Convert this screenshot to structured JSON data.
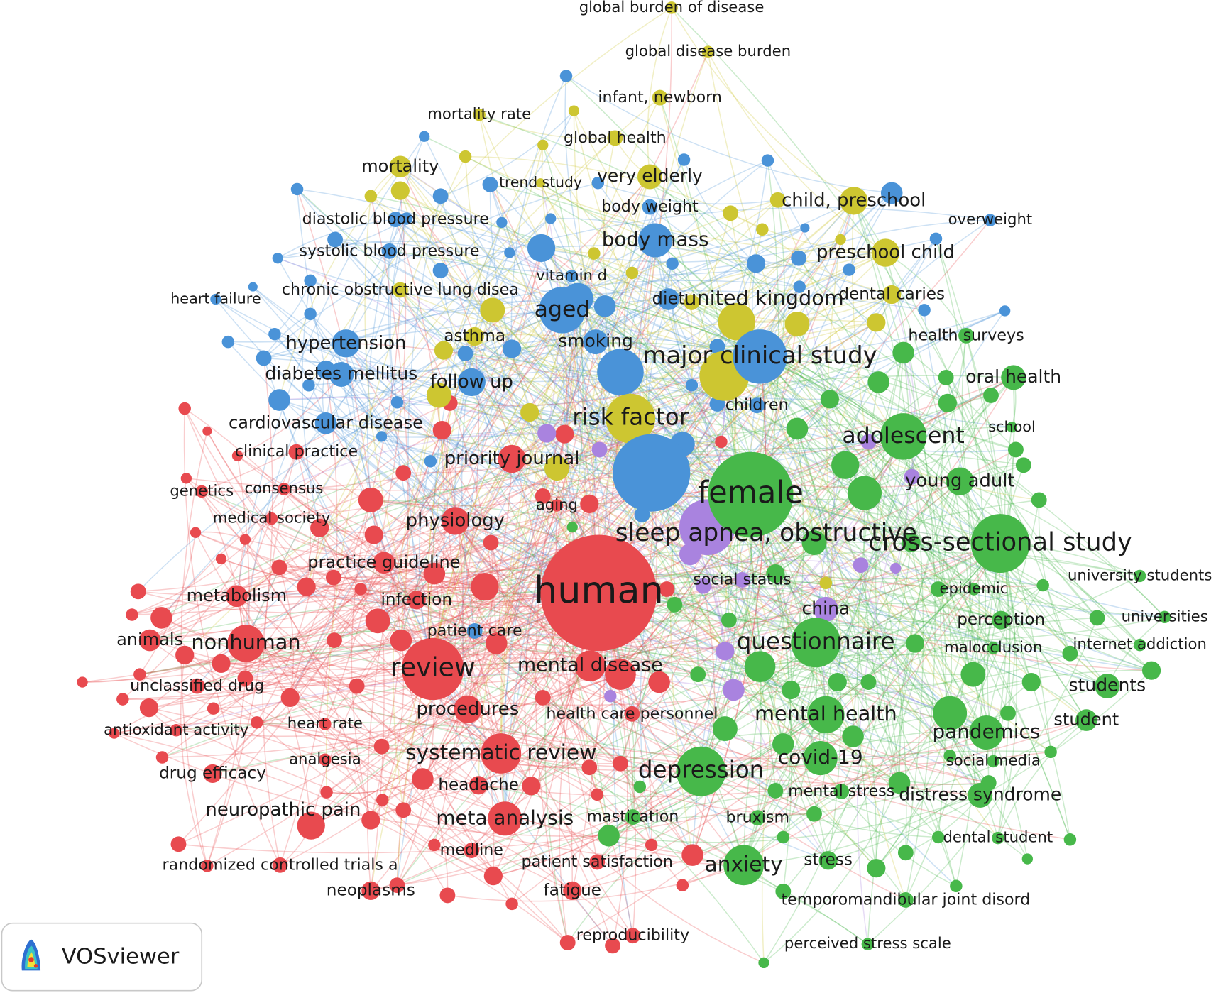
{
  "nodes": [
    {
      "label": "global burden of disease"
    },
    {
      "label": "global disease burden"
    },
    {
      "label": "infant, newborn"
    },
    {
      "label": "mortality rate"
    },
    {
      "label": "global health"
    },
    {
      "label": "mortality"
    },
    {
      "label": "trend study"
    },
    {
      "label": "very elderly"
    },
    {
      "label": "child, preschool"
    },
    {
      "label": "body weight"
    },
    {
      "label": "diastolic blood pressure"
    },
    {
      "label": "overweight"
    },
    {
      "label": "body mass"
    },
    {
      "label": "systolic blood pressure"
    },
    {
      "label": "preschool child"
    },
    {
      "label": "vitamin d"
    },
    {
      "label": "chronic obstructive lung disea"
    },
    {
      "label": "heart failure"
    },
    {
      "label": "aged"
    },
    {
      "label": "diet"
    },
    {
      "label": "united kingdom"
    },
    {
      "label": "dental caries"
    },
    {
      "label": "asthma"
    },
    {
      "label": "hypertension"
    },
    {
      "label": "smoking"
    },
    {
      "label": "major clinical study"
    },
    {
      "label": "health surveys"
    },
    {
      "label": "diabetes mellitus"
    },
    {
      "label": "follow up"
    },
    {
      "label": "oral health"
    },
    {
      "label": "children"
    },
    {
      "label": "risk factor"
    },
    {
      "label": "cardiovascular disease"
    },
    {
      "label": "adolescent"
    },
    {
      "label": "school"
    },
    {
      "label": "clinical practice"
    },
    {
      "label": "priority journal"
    },
    {
      "label": "female"
    },
    {
      "label": "young adult"
    },
    {
      "label": "genetics"
    },
    {
      "label": "consensus"
    },
    {
      "label": "aging"
    },
    {
      "label": "medical society"
    },
    {
      "label": "physiology"
    },
    {
      "label": "sleep apnea, obstructive"
    },
    {
      "label": "cross-sectional study"
    },
    {
      "label": "practice guideline"
    },
    {
      "label": "university students"
    },
    {
      "label": "social status"
    },
    {
      "label": "human"
    },
    {
      "label": "epidemic"
    },
    {
      "label": "metabolism"
    },
    {
      "label": "infection"
    },
    {
      "label": "china"
    },
    {
      "label": "universities"
    },
    {
      "label": "perception"
    },
    {
      "label": "patient care"
    },
    {
      "label": "animals"
    },
    {
      "label": "nonhuman"
    },
    {
      "label": "questionnaire"
    },
    {
      "label": "malocclusion"
    },
    {
      "label": "internet addiction"
    },
    {
      "label": "review"
    },
    {
      "label": "mental disease"
    },
    {
      "label": "unclassified drug"
    },
    {
      "label": "students"
    },
    {
      "label": "procedures"
    },
    {
      "label": "health care personnel"
    },
    {
      "label": "antioxidant activity"
    },
    {
      "label": "heart rate"
    },
    {
      "label": "mental health"
    },
    {
      "label": "student"
    },
    {
      "label": "pandemics"
    },
    {
      "label": "systematic review"
    },
    {
      "label": "analgesia"
    },
    {
      "label": "social media"
    },
    {
      "label": "covid-19"
    },
    {
      "label": "depression"
    },
    {
      "label": "drug efficacy"
    },
    {
      "label": "headache"
    },
    {
      "label": "mental stress"
    },
    {
      "label": "distress syndrome"
    },
    {
      "label": "neuropathic pain"
    },
    {
      "label": "meta analysis"
    },
    {
      "label": "mastication"
    },
    {
      "label": "bruxism"
    },
    {
      "label": "dental student"
    },
    {
      "label": "medline"
    },
    {
      "label": "randomized controlled trials a"
    },
    {
      "label": "patient satisfaction"
    },
    {
      "label": "anxiety"
    },
    {
      "label": "stress"
    },
    {
      "label": "neoplasms"
    },
    {
      "label": "fatigue"
    },
    {
      "label": "temporomandibular joint disord"
    },
    {
      "label": "reproducibility"
    },
    {
      "label": "perceived stress scale"
    }
  ],
  "logo": {
    "text": "VOSviewer"
  }
}
